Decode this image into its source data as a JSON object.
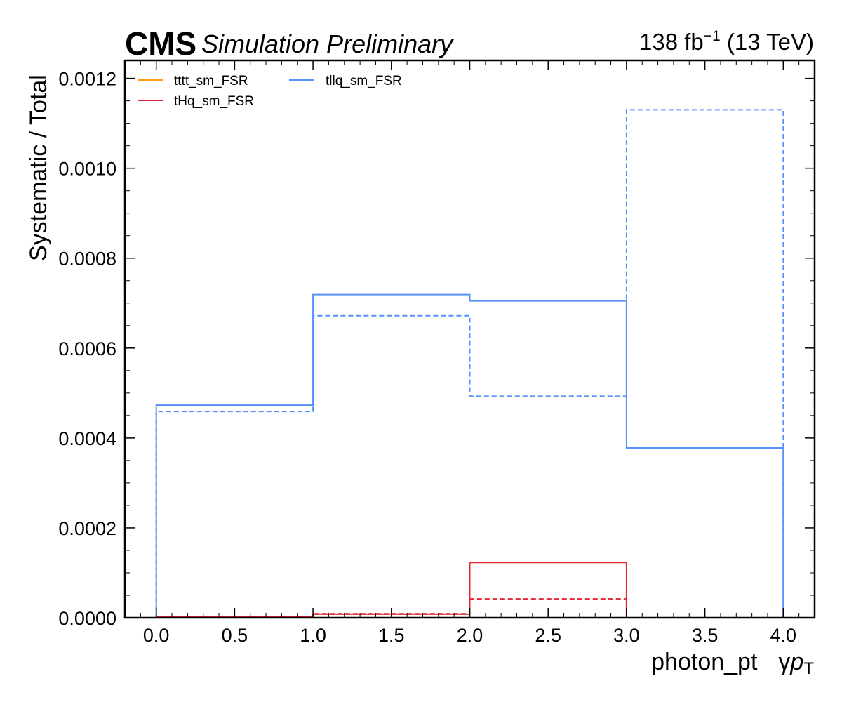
{
  "header": {
    "experiment": "CMS",
    "status": "Simulation Preliminary",
    "lumi_value": "138 fb",
    "lumi_exp": "−1",
    "lumi_energy": " (13 TeV)"
  },
  "chart_data": {
    "type": "step",
    "title": "",
    "xlabel": "photon_pt",
    "xlabel_symbol": "γ",
    "xlabel_var": "p",
    "xlabel_sub": "T",
    "ylabel": "Systematic / Total",
    "xlim": [
      -0.2,
      4.2
    ],
    "ylim": [
      0,
      0.00124
    ],
    "grid": false,
    "legend_position": "top-left",
    "bin_edges": [
      0,
      1,
      2,
      3,
      4
    ],
    "x_ticks": [
      "0.0",
      "0.5",
      "1.0",
      "1.5",
      "2.0",
      "2.5",
      "3.0",
      "3.5",
      "4.0"
    ],
    "y_ticks": [
      "0.0000",
      "0.0002",
      "0.0004",
      "0.0006",
      "0.0008",
      "0.0010",
      "0.0012"
    ],
    "series": [
      {
        "name": "tttt_sm_FSR",
        "color": "#ff9b1a",
        "values_up": [
          0,
          0,
          0,
          0
        ],
        "values_down": [
          0,
          0,
          0,
          0
        ]
      },
      {
        "name": "tHq_sm_FSR",
        "color": "#e42536",
        "values_up": [
          3e-06,
          8e-06,
          0.000123,
          0
        ],
        "values_down": [
          2e-06,
          9e-06,
          4.2e-05,
          0
        ]
      },
      {
        "name": "tllq_sm_FSR",
        "color": "#5790fc",
        "values_up": [
          0.000473,
          0.000719,
          0.000705,
          0.000378
        ],
        "values_down": [
          0.000459,
          0.000672,
          0.000493,
          0.00113
        ]
      }
    ]
  }
}
